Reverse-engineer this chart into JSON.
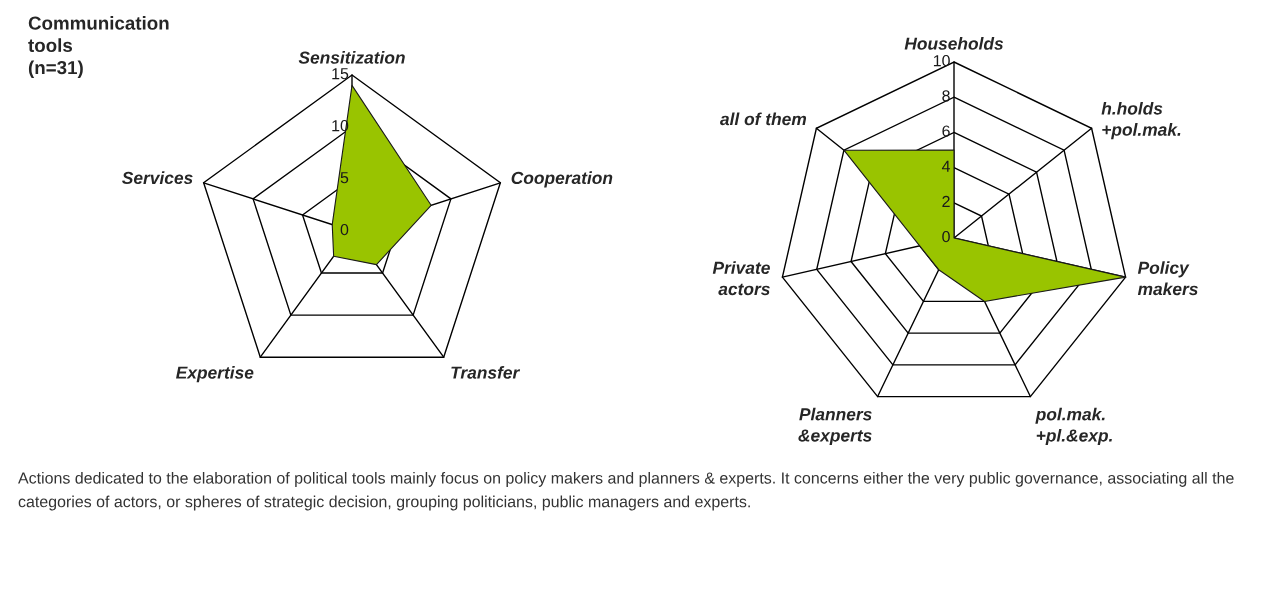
{
  "chart_data": [
    {
      "type": "radar",
      "title": "Communication\ntools\n(n=31)",
      "categories": [
        "Sensitization",
        "Cooperation",
        "Transfer",
        "Expertise",
        "Services"
      ],
      "series": [
        {
          "color": "#99c400",
          "values": [
            14,
            8,
            4,
            3,
            2
          ]
        }
      ],
      "ylim": [
        0,
        15
      ],
      "yticks": [
        0,
        5,
        10,
        15
      ],
      "annotations": [
        "Actions dedicated to the elaboration of political tools mainly focus on policy makers and planners & experts. It concerns either the very public governance, associating all the categories of actors, or spheres of strategic decision, grouping politicians, public managers and experts."
      ]
    },
    {
      "type": "radar",
      "categories": [
        "Households",
        "h.holds\n+pol.mak.",
        "Policy\nmakers",
        "pol.mak.\n+pl.&exp.",
        "Planners\n&experts",
        "Private\nactors",
        "all of them"
      ],
      "series": [
        {
          "color": "#99c400",
          "values": [
            5,
            0,
            10,
            4,
            2,
            2,
            8
          ]
        }
      ],
      "ylim": [
        0,
        10
      ],
      "yticks": [
        0,
        2,
        4,
        6,
        8,
        10
      ]
    }
  ]
}
